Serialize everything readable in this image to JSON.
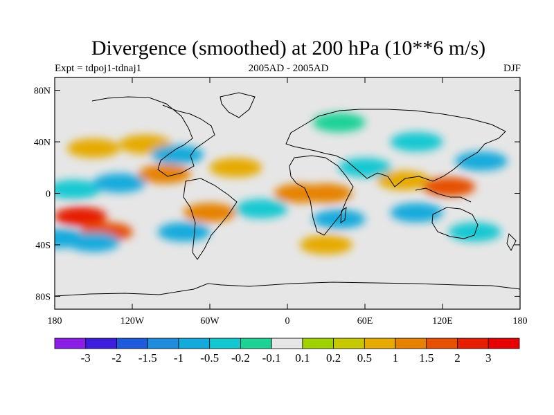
{
  "header": {
    "title": "Divergence (smoothed) at 200 hPa (10**6 m/s)",
    "experiment": "Expt = tdpoj1-tdnaj1",
    "period": "2005AD - 2005AD",
    "season": "DJF"
  },
  "chart_data": {
    "type": "heatmap",
    "title": "Divergence (smoothed) at 200 hPa (10**6 m/s)",
    "xlabel": "",
    "ylabel": "",
    "xlim": [
      -180,
      180
    ],
    "ylim": [
      -90,
      90
    ],
    "x_ticks": [
      {
        "value": -180,
        "label": "180"
      },
      {
        "value": -120,
        "label": "120W"
      },
      {
        "value": -60,
        "label": "60W"
      },
      {
        "value": 0,
        "label": "0"
      },
      {
        "value": 60,
        "label": "60E"
      },
      {
        "value": 120,
        "label": "120E"
      },
      {
        "value": 180,
        "label": "180"
      }
    ],
    "y_ticks": [
      {
        "value": 80,
        "label": "80N"
      },
      {
        "value": 40,
        "label": "40N"
      },
      {
        "value": 0,
        "label": "0"
      },
      {
        "value": -40,
        "label": "40S"
      },
      {
        "value": -80,
        "label": "80S"
      }
    ],
    "colorbar": {
      "levels": [
        "-3",
        "-2",
        "-1.5",
        "-1",
        "-0.5",
        "-0.2",
        "-0.1",
        "0.1",
        "0.2",
        "0.5",
        "1",
        "1.5",
        "2",
        "3"
      ],
      "colors": [
        "#8a1ee6",
        "#3c1edc",
        "#1e5adc",
        "#1e8cdc",
        "#14aadc",
        "#14c8d2",
        "#1ed296",
        "#e6e6e6",
        "#a0d200",
        "#c8c800",
        "#e6aa00",
        "#e68200",
        "#e65000",
        "#e61e00",
        "#e60000"
      ]
    },
    "regions": [
      {
        "lon": -160,
        "lat": -18,
        "value": 2
      },
      {
        "lon": -140,
        "lat": -30,
        "value": 1.5
      },
      {
        "lon": -150,
        "lat": -38,
        "value": -1
      },
      {
        "lon": -175,
        "lat": -35,
        "value": -1
      },
      {
        "lon": -165,
        "lat": 3,
        "value": -0.5
      },
      {
        "lon": -130,
        "lat": 8,
        "value": -1
      },
      {
        "lon": -150,
        "lat": 35,
        "value": 0.5
      },
      {
        "lon": -110,
        "lat": 38,
        "value": 0.5
      },
      {
        "lon": -95,
        "lat": 15,
        "value": 1
      },
      {
        "lon": -85,
        "lat": 30,
        "value": -1
      },
      {
        "lon": -60,
        "lat": -15,
        "value": 1
      },
      {
        "lon": -80,
        "lat": -30,
        "value": -1
      },
      {
        "lon": -40,
        "lat": 20,
        "value": 0.5
      },
      {
        "lon": -20,
        "lat": -12,
        "value": -0.5
      },
      {
        "lon": 10,
        "lat": 0,
        "value": 1
      },
      {
        "lon": 30,
        "lat": 0,
        "value": 1
      },
      {
        "lon": 40,
        "lat": -20,
        "value": -1
      },
      {
        "lon": 60,
        "lat": 20,
        "value": -0.5
      },
      {
        "lon": 90,
        "lat": 10,
        "value": 0.5
      },
      {
        "lon": 125,
        "lat": 5,
        "value": 1.5
      },
      {
        "lon": 100,
        "lat": -15,
        "value": -1
      },
      {
        "lon": 150,
        "lat": 25,
        "value": -1
      },
      {
        "lon": 145,
        "lat": -30,
        "value": -0.5
      },
      {
        "lon": 30,
        "lat": -40,
        "value": 0.5
      },
      {
        "lon": 100,
        "lat": 40,
        "value": -0.5
      },
      {
        "lon": 40,
        "lat": 55,
        "value": -0.2
      }
    ]
  }
}
